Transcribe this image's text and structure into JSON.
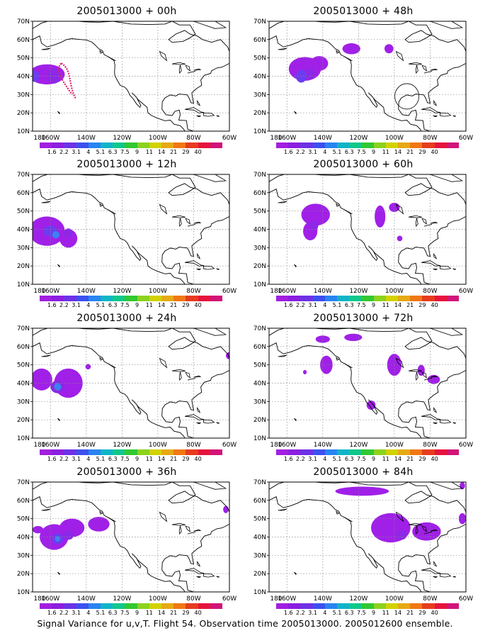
{
  "lat_labels": [
    "70N",
    "60N",
    "50N",
    "40N",
    "30N",
    "20N",
    "10N"
  ],
  "lon_labels": [
    "180",
    "160W",
    "140W",
    "120W",
    "100W",
    "80W",
    "60W"
  ],
  "colorbar": {
    "labels": [
      "1.6",
      "2.2",
      "3.1",
      "4",
      "5.1",
      "6.3",
      "7.5",
      "9",
      "11",
      "14",
      "21",
      "29",
      "40"
    ],
    "colors": [
      "#a21ee0",
      "#8c1ee0",
      "#6e32e6",
      "#3c50f0",
      "#2884f0",
      "#10b4c8",
      "#10c88c",
      "#32c832",
      "#8cd21e",
      "#d2d200",
      "#e6aa14",
      "#f07814",
      "#e63c1e",
      "#e6143c",
      "#d21478"
    ]
  },
  "shading_colors": {
    "light": "#a020e8",
    "mid": "#8c28e6",
    "dark": "#6c3cf0",
    "core": "#3c82f0",
    "contour": "#e0206a"
  },
  "panels": [
    {
      "title": "2005013000 + 00h"
    },
    {
      "title": "2005013000 + 48h"
    },
    {
      "title": "2005013000 + 12h"
    },
    {
      "title": "2005013000 + 60h"
    },
    {
      "title": "2005013000 + 24h"
    },
    {
      "title": "2005013000 + 72h"
    },
    {
      "title": "2005013000 + 36h"
    },
    {
      "title": "2005013000 + 84h"
    }
  ],
  "footer": "Signal Variance for u,v,T. Flight 54. Observation time 2005013000. 2005012600 ensemble."
}
